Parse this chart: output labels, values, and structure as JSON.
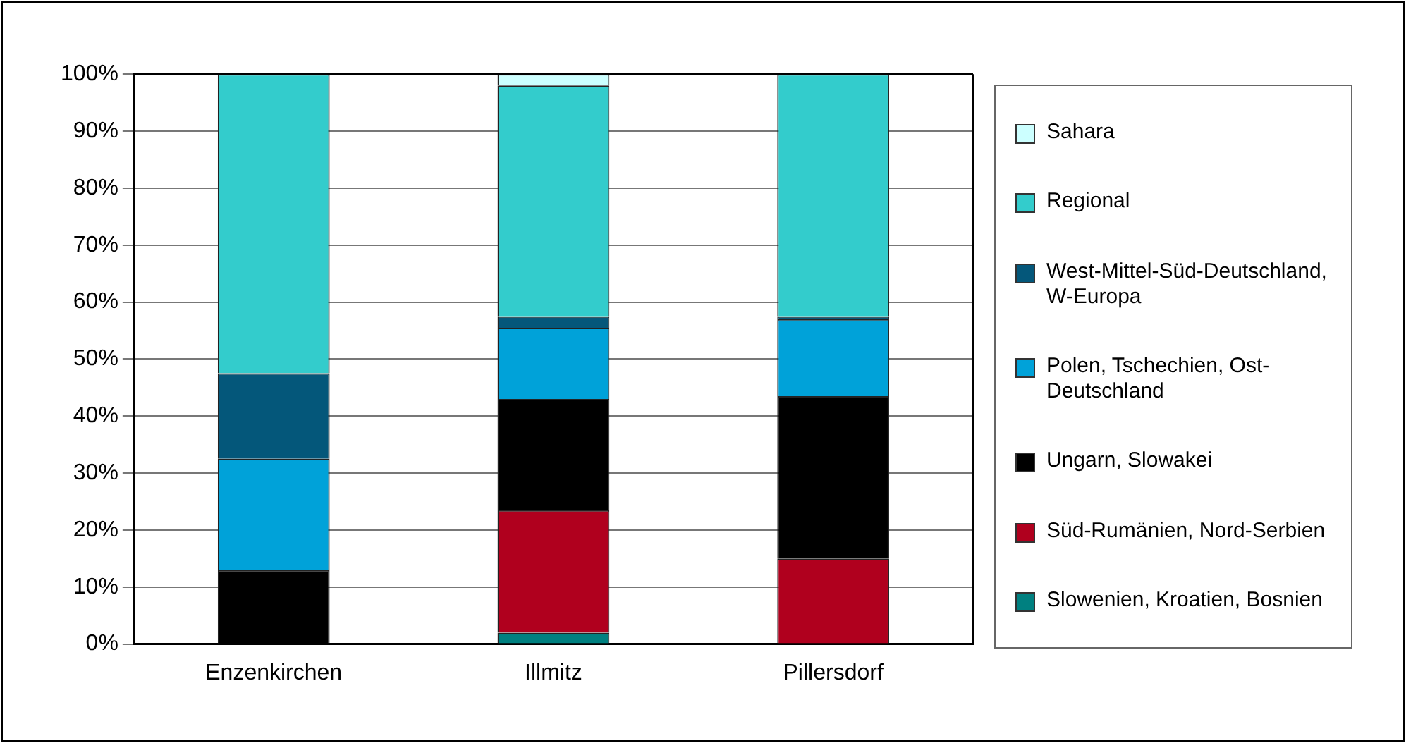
{
  "chart_data": {
    "type": "bar",
    "stacked": true,
    "categories": [
      "Enzenkirchen",
      "Illmitz",
      "Pillersdorf"
    ],
    "series": [
      {
        "name": "Slowenien, Kroatien, Bosnien",
        "color": "#008080",
        "values": [
          0,
          2,
          0
        ]
      },
      {
        "name": "Süd-Rumänien, Nord-Serbien",
        "color": "#b0001e",
        "values": [
          0,
          21.5,
          15
        ]
      },
      {
        "name": "Ungarn, Slowakei",
        "color": "#000000",
        "values": [
          13,
          19.5,
          28.5
        ]
      },
      {
        "name": "Polen, Tschechien, Ost-Deutschland",
        "color": "#00a2d9",
        "values": [
          19.5,
          12.5,
          13.5
        ]
      },
      {
        "name": "West-Mittel-Süd-Deutschland, W-Europa",
        "color": "#04577a",
        "values": [
          15,
          2,
          0.5
        ]
      },
      {
        "name": "Regional",
        "color": "#33cccc",
        "values": [
          52.5,
          40.5,
          42.5
        ]
      },
      {
        "name": "Sahara",
        "color": "#ccffff",
        "values": [
          0,
          2,
          0
        ]
      }
    ],
    "ylim": [
      0,
      100
    ],
    "yticks": [
      {
        "value": 0,
        "label": "0%"
      },
      {
        "value": 10,
        "label": "10%"
      },
      {
        "value": 20,
        "label": "20%"
      },
      {
        "value": 30,
        "label": "30%"
      },
      {
        "value": 40,
        "label": "40%"
      },
      {
        "value": 50,
        "label": "50%"
      },
      {
        "value": 60,
        "label": "60%"
      },
      {
        "value": 70,
        "label": "70%"
      },
      {
        "value": 80,
        "label": "80%"
      },
      {
        "value": 90,
        "label": "90%"
      },
      {
        "value": 100,
        "label": "100%"
      }
    ],
    "grid": "y",
    "legend": "right"
  }
}
